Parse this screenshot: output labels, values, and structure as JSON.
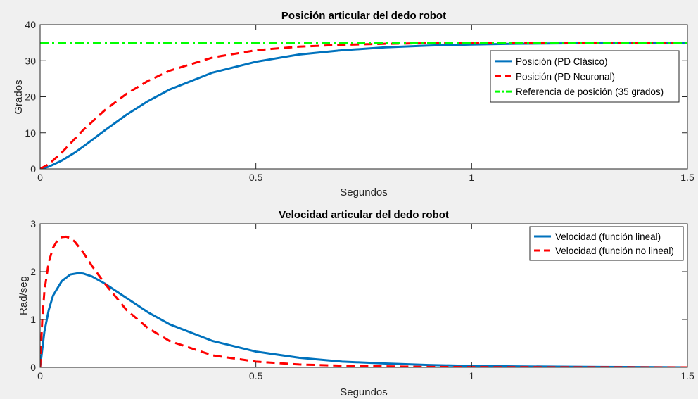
{
  "figure": {
    "background": "#f0f0f0"
  },
  "chart_data": [
    {
      "type": "line",
      "title": "Posición articular del dedo robot",
      "xlabel": "Segundos",
      "ylabel": "Grados",
      "xlim": [
        0,
        1.5
      ],
      "ylim": [
        0,
        40
      ],
      "xticks": [
        0,
        0.5,
        1,
        1.5
      ],
      "xtick_labels": [
        "0",
        "0.5",
        "1",
        "1.5"
      ],
      "yticks": [
        0,
        10,
        20,
        30,
        40
      ],
      "ytick_labels": [
        "0",
        "10",
        "20",
        "30",
        "40"
      ],
      "grid": false,
      "legend_position": "right",
      "series": [
        {
          "name": "Posición (PD Clásico)",
          "color": "#0072BD",
          "style": "solid",
          "x": [
            0,
            0.02,
            0.05,
            0.08,
            0.1,
            0.15,
            0.2,
            0.25,
            0.3,
            0.4,
            0.5,
            0.6,
            0.7,
            0.8,
            0.9,
            1.0,
            1.1,
            1.2,
            1.3,
            1.4,
            1.5
          ],
          "y": [
            0,
            0.6,
            2.3,
            4.5,
            6.2,
            10.7,
            15.0,
            18.8,
            22.0,
            26.7,
            29.7,
            31.7,
            32.9,
            33.7,
            34.2,
            34.5,
            34.7,
            34.8,
            34.9,
            34.95,
            35.0
          ]
        },
        {
          "name": "Posición (PD Neuronal)",
          "color": "#FF0000",
          "style": "dashed",
          "x": [
            0,
            0.02,
            0.05,
            0.08,
            0.1,
            0.15,
            0.2,
            0.25,
            0.3,
            0.4,
            0.5,
            0.6,
            0.7,
            0.8,
            0.9,
            1.0,
            1.1,
            1.2,
            1.3,
            1.4,
            1.5
          ],
          "y": [
            0,
            1.3,
            4.5,
            8.3,
            10.8,
            16.3,
            20.8,
            24.4,
            27.2,
            30.9,
            32.9,
            33.9,
            34.4,
            34.7,
            34.85,
            34.92,
            34.96,
            34.98,
            34.99,
            35.0,
            35.0
          ]
        },
        {
          "name": "Referencia de posición (35 grados)",
          "color": "#00FF00",
          "style": "dashdot",
          "x": [
            0,
            1.5
          ],
          "y": [
            35,
            35
          ]
        }
      ]
    },
    {
      "type": "line",
      "title": "Velocidad articular del dedo robot",
      "xlabel": "Segundos",
      "ylabel": "Rad/seg",
      "xlim": [
        0,
        1.5
      ],
      "ylim": [
        0,
        3
      ],
      "xticks": [
        0,
        0.5,
        1,
        1.5
      ],
      "xtick_labels": [
        "0",
        "0.5",
        "1",
        "1.5"
      ],
      "yticks": [
        0,
        1,
        2,
        3
      ],
      "ytick_labels": [
        "0",
        "1",
        "2",
        "3"
      ],
      "grid": false,
      "legend_position": "top-right",
      "series": [
        {
          "name": "Velocidad (función lineal)",
          "color": "#0072BD",
          "style": "solid",
          "x": [
            0,
            0.01,
            0.02,
            0.03,
            0.05,
            0.07,
            0.09,
            0.1,
            0.12,
            0.15,
            0.2,
            0.25,
            0.3,
            0.4,
            0.5,
            0.6,
            0.7,
            0.8,
            0.9,
            1.0,
            1.1,
            1.2,
            1.3,
            1.4,
            1.5
          ],
          "y": [
            0,
            0.75,
            1.2,
            1.5,
            1.8,
            1.94,
            1.97,
            1.96,
            1.9,
            1.75,
            1.45,
            1.15,
            0.9,
            0.55,
            0.33,
            0.2,
            0.12,
            0.08,
            0.05,
            0.03,
            0.02,
            0.015,
            0.01,
            0.005,
            0
          ]
        },
        {
          "name": "Velocidad (función no lineal)",
          "color": "#FF0000",
          "style": "dashed",
          "x": [
            0,
            0.005,
            0.01,
            0.02,
            0.03,
            0.04,
            0.05,
            0.06,
            0.07,
            0.08,
            0.1,
            0.12,
            0.15,
            0.2,
            0.25,
            0.3,
            0.4,
            0.5,
            0.6,
            0.7,
            0.8,
            0.9,
            1.0,
            1.2,
            1.5
          ],
          "y": [
            0,
            1.0,
            1.6,
            2.2,
            2.5,
            2.65,
            2.72,
            2.73,
            2.7,
            2.63,
            2.4,
            2.12,
            1.75,
            1.2,
            0.82,
            0.55,
            0.25,
            0.12,
            0.06,
            0.035,
            0.02,
            0.01,
            0.005,
            0.002,
            0
          ]
        }
      ]
    }
  ]
}
